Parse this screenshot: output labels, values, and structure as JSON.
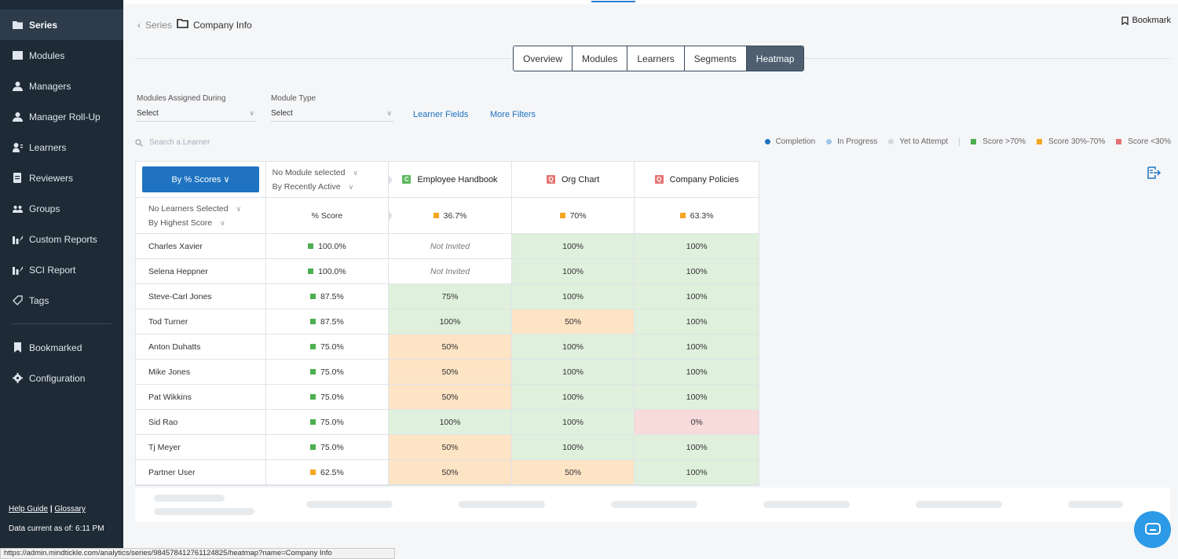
{
  "sidebar": {
    "items": [
      {
        "label": "Series",
        "icon": "folder-icon",
        "active": true
      },
      {
        "label": "Modules",
        "icon": "module-icon"
      },
      {
        "label": "Managers",
        "icon": "user-icon"
      },
      {
        "label": "Manager Roll-Up",
        "icon": "user-icon"
      },
      {
        "label": "Learners",
        "icon": "learner-icon"
      },
      {
        "label": "Reviewers",
        "icon": "reviewer-icon"
      },
      {
        "label": "Groups",
        "icon": "group-icon"
      },
      {
        "label": "Custom Reports",
        "icon": "report-icon"
      },
      {
        "label": "SCI Report",
        "icon": "report-icon"
      },
      {
        "label": "Tags",
        "icon": "tag-icon"
      }
    ],
    "bottom_items": [
      {
        "label": "Bookmarked",
        "icon": "bookmark-icon"
      },
      {
        "label": "Configuration",
        "icon": "gear-icon"
      }
    ],
    "help_guide": "Help Guide",
    "separator": "|",
    "glossary": "Glossary",
    "data_current": "Data current as of: 6:11 PM"
  },
  "breadcrumb": {
    "parent": "Series",
    "current": "Company Info"
  },
  "bookmark_label": "Bookmark",
  "tabs": [
    "Overview",
    "Modules",
    "Learners",
    "Segments",
    "Heatmap"
  ],
  "active_tab": "Heatmap",
  "filters": {
    "assigned_label": "Modules Assigned During",
    "assigned_value": "Select",
    "type_label": "Module Type",
    "type_value": "Select",
    "learner_fields": "Learner Fields",
    "more_filters": "More Filters"
  },
  "search_placeholder": "Search a Learner",
  "legend": {
    "completion": "Completion",
    "in_progress": "In Progress",
    "yet_to_attempt": "Yet to Attempt",
    "score_high": "Score >70%",
    "score_mid": "Score 30%-70%",
    "score_low": "Score <30%"
  },
  "colors": {
    "accent": "#1f73c1",
    "green": "#4caf50",
    "orange": "#f5a623",
    "red": "#e57373"
  },
  "table": {
    "sort_button": "By % Scores",
    "module_filter": "No Module selected",
    "module_sort": "By Recently Active",
    "learner_filter": "No Learners Selected",
    "learner_sort": "By Highest Score",
    "score_header": "% Score",
    "modules": [
      {
        "badge": "C",
        "name": "Employee Handbook",
        "avg": "36.7%"
      },
      {
        "badge": "Q",
        "name": "Org Chart",
        "avg": "70%"
      },
      {
        "badge": "Q",
        "name": "Company Policies",
        "avg": "63.3%"
      }
    ],
    "rows": [
      {
        "name": "Charles Xavier",
        "score": "100.0%",
        "cells": [
          "Not Invited",
          "100%",
          "100%"
        ]
      },
      {
        "name": "Selena Heppner",
        "score": "100.0%",
        "cells": [
          "Not Invited",
          "100%",
          "100%"
        ]
      },
      {
        "name": "Steve-Carl Jones",
        "score": "87.5%",
        "cells": [
          "75%",
          "100%",
          "100%"
        ]
      },
      {
        "name": "Tod Turner",
        "score": "87.5%",
        "cells": [
          "100%",
          "50%",
          "100%"
        ]
      },
      {
        "name": "Anton Duhatts",
        "score": "75.0%",
        "cells": [
          "50%",
          "100%",
          "100%"
        ]
      },
      {
        "name": "Mike Jones",
        "score": "75.0%",
        "cells": [
          "50%",
          "100%",
          "100%"
        ]
      },
      {
        "name": "Pat Wikkins",
        "score": "75.0%",
        "cells": [
          "50%",
          "100%",
          "100%"
        ]
      },
      {
        "name": "Sid Rao",
        "score": "75.0%",
        "cells": [
          "100%",
          "100%",
          "0%"
        ]
      },
      {
        "name": "Tj Meyer",
        "score": "75.0%",
        "cells": [
          "50%",
          "100%",
          "100%"
        ]
      },
      {
        "name": "Partner User",
        "score": "62.5%",
        "cells": [
          "50%",
          "50%",
          "100%"
        ]
      }
    ]
  },
  "status_url": "https://admin.mindtickle.com/analytics/series/984578412761124825/heatmap?name=Company Info"
}
